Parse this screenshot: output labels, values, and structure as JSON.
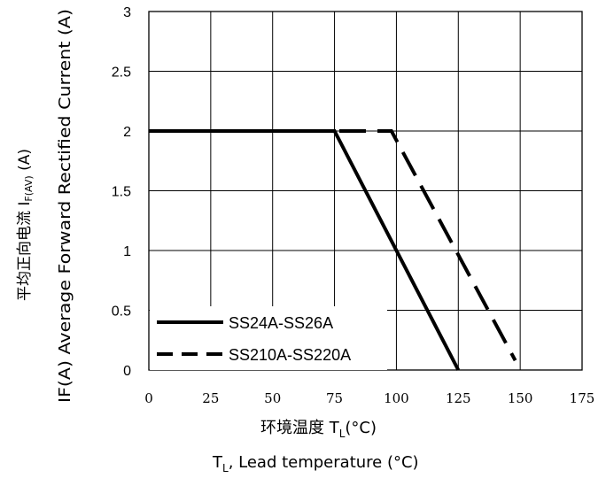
{
  "chart_data": {
    "type": "line",
    "x_ticks": [
      "0",
      "25",
      "50",
      "75",
      "100",
      "125",
      "150",
      "175"
    ],
    "y_ticks": [
      "0",
      "0.5",
      "1",
      "1.5",
      "2",
      "2.5",
      "3"
    ],
    "xlim": [
      0,
      175
    ],
    "ylim": [
      0,
      3
    ],
    "grid": true,
    "xlabel_cn": "环境温度 T",
    "xlabel_cn_sub": "L",
    "xlabel_cn_unit": "(°C)",
    "xlabel_en_prefix": "T",
    "xlabel_en_sub": "L",
    "xlabel_en_rest": ", Lead temperature (°C)",
    "ylabel_en_main": "IF(A) Average Forward Rectified Current (A)",
    "ylabel_cn_main": "平均正向电流    I",
    "ylabel_cn_sub": "F(AV)",
    "ylabel_cn_unit": " (A)",
    "legend_position": "bottom-left",
    "series": [
      {
        "name": "SS24A-SS26A",
        "style": "solid",
        "color": "#000000",
        "x": [
          0,
          75,
          125
        ],
        "y": [
          2,
          2,
          0
        ]
      },
      {
        "name": "SS210A-SS220A",
        "style": "dashed",
        "color": "#000000",
        "x": [
          0,
          98,
          148
        ],
        "y": [
          2,
          2,
          0.08
        ]
      }
    ]
  }
}
